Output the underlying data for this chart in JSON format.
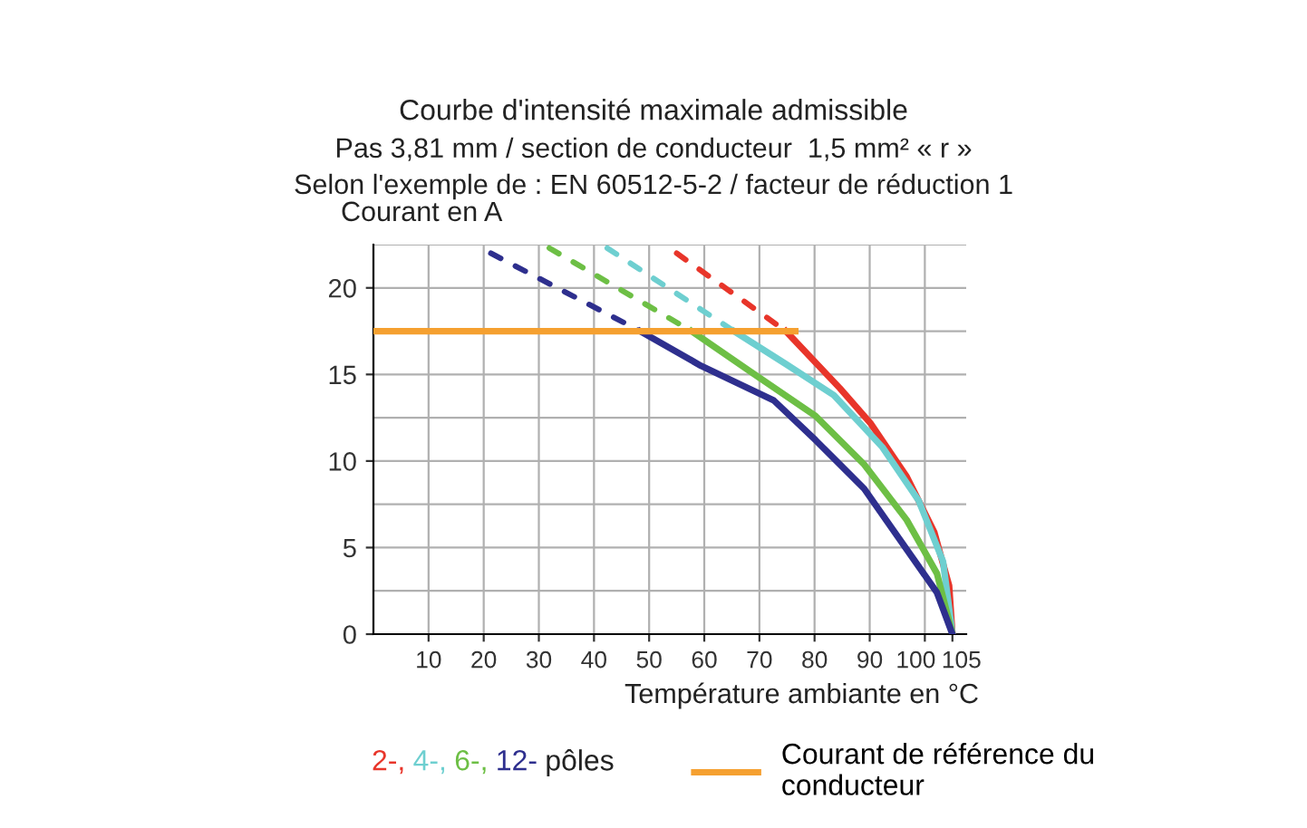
{
  "chart_data": {
    "type": "line",
    "title": "Courbe d'intensité maximale admissible",
    "subtitle": "Pas 3,81 mm / section de conducteur  1,5 mm² « r »\nSelon l'exemple de : EN 60512-5-2 / facteur de réduction 1",
    "xlabel": "Température ambiante en °C",
    "ylabel": "Courant en A",
    "xlim": [
      0,
      107.5
    ],
    "ylim": [
      0,
      22.5
    ],
    "xticks": [
      10,
      20,
      30,
      40,
      50,
      60,
      70,
      80,
      90,
      100,
      105
    ],
    "yticks": [
      0,
      5,
      10,
      15,
      20
    ],
    "grid": true,
    "legend": "bottom",
    "marker": "none",
    "annotations": [
      "pôles"
    ],
    "series": [
      {
        "name": "2-,",
        "color": "#e8352a",
        "line_style": "solid",
        "x": [
          74.8,
          84.6,
          90.1,
          96.7,
          101.7,
          104.4,
          105
        ],
        "values": [
          17.5,
          14.2,
          12.2,
          9.1,
          5.9,
          2.8,
          0
        ]
      },
      {
        "name": "4-,",
        "color": "#6ecfd0",
        "line_style": "solid",
        "x": [
          65.4,
          74.8,
          83.5,
          92.3,
          98.9,
          103.3,
          105
        ],
        "values": [
          17.5,
          15.6,
          13.8,
          10.8,
          7.7,
          4.2,
          0
        ]
      },
      {
        "name": "6-,",
        "color": "#6dbf45",
        "line_style": "solid",
        "x": [
          57.7,
          68.2,
          80.2,
          89.0,
          96.7,
          102.2,
          105
        ],
        "values": [
          17.5,
          15.2,
          12.6,
          9.8,
          6.6,
          3.5,
          0
        ]
      },
      {
        "name": "12-",
        "color": "#2e2f8e",
        "line_style": "solid",
        "x": [
          48.4,
          59.4,
          72.6,
          80.2,
          89.0,
          96.7,
          102.2,
          105
        ],
        "values": [
          17.5,
          15.5,
          13.5,
          11.2,
          8.4,
          4.9,
          2.4,
          0
        ]
      },
      {
        "color": "#e8352a",
        "line_style": "dashed",
        "x": [
          55.0,
          74.8
        ],
        "values": [
          22.0,
          17.5
        ]
      },
      {
        "color": "#6ecfd0",
        "line_style": "dashed",
        "x": [
          42.4,
          65.4
        ],
        "values": [
          22.3,
          17.5
        ]
      },
      {
        "color": "#6dbf45",
        "line_style": "dashed",
        "x": [
          31.9,
          57.7
        ],
        "values": [
          22.3,
          17.5
        ]
      },
      {
        "color": "#2e2f8e",
        "line_style": "dashed",
        "x": [
          21.3,
          48.4
        ],
        "values": [
          22.0,
          17.5
        ]
      },
      {
        "name": "Courant de référence du\nconducteur",
        "color": "#f5a030",
        "line_style": "solid",
        "x": [
          0,
          76.5
        ],
        "values": [
          17.5,
          17.5
        ]
      }
    ]
  }
}
